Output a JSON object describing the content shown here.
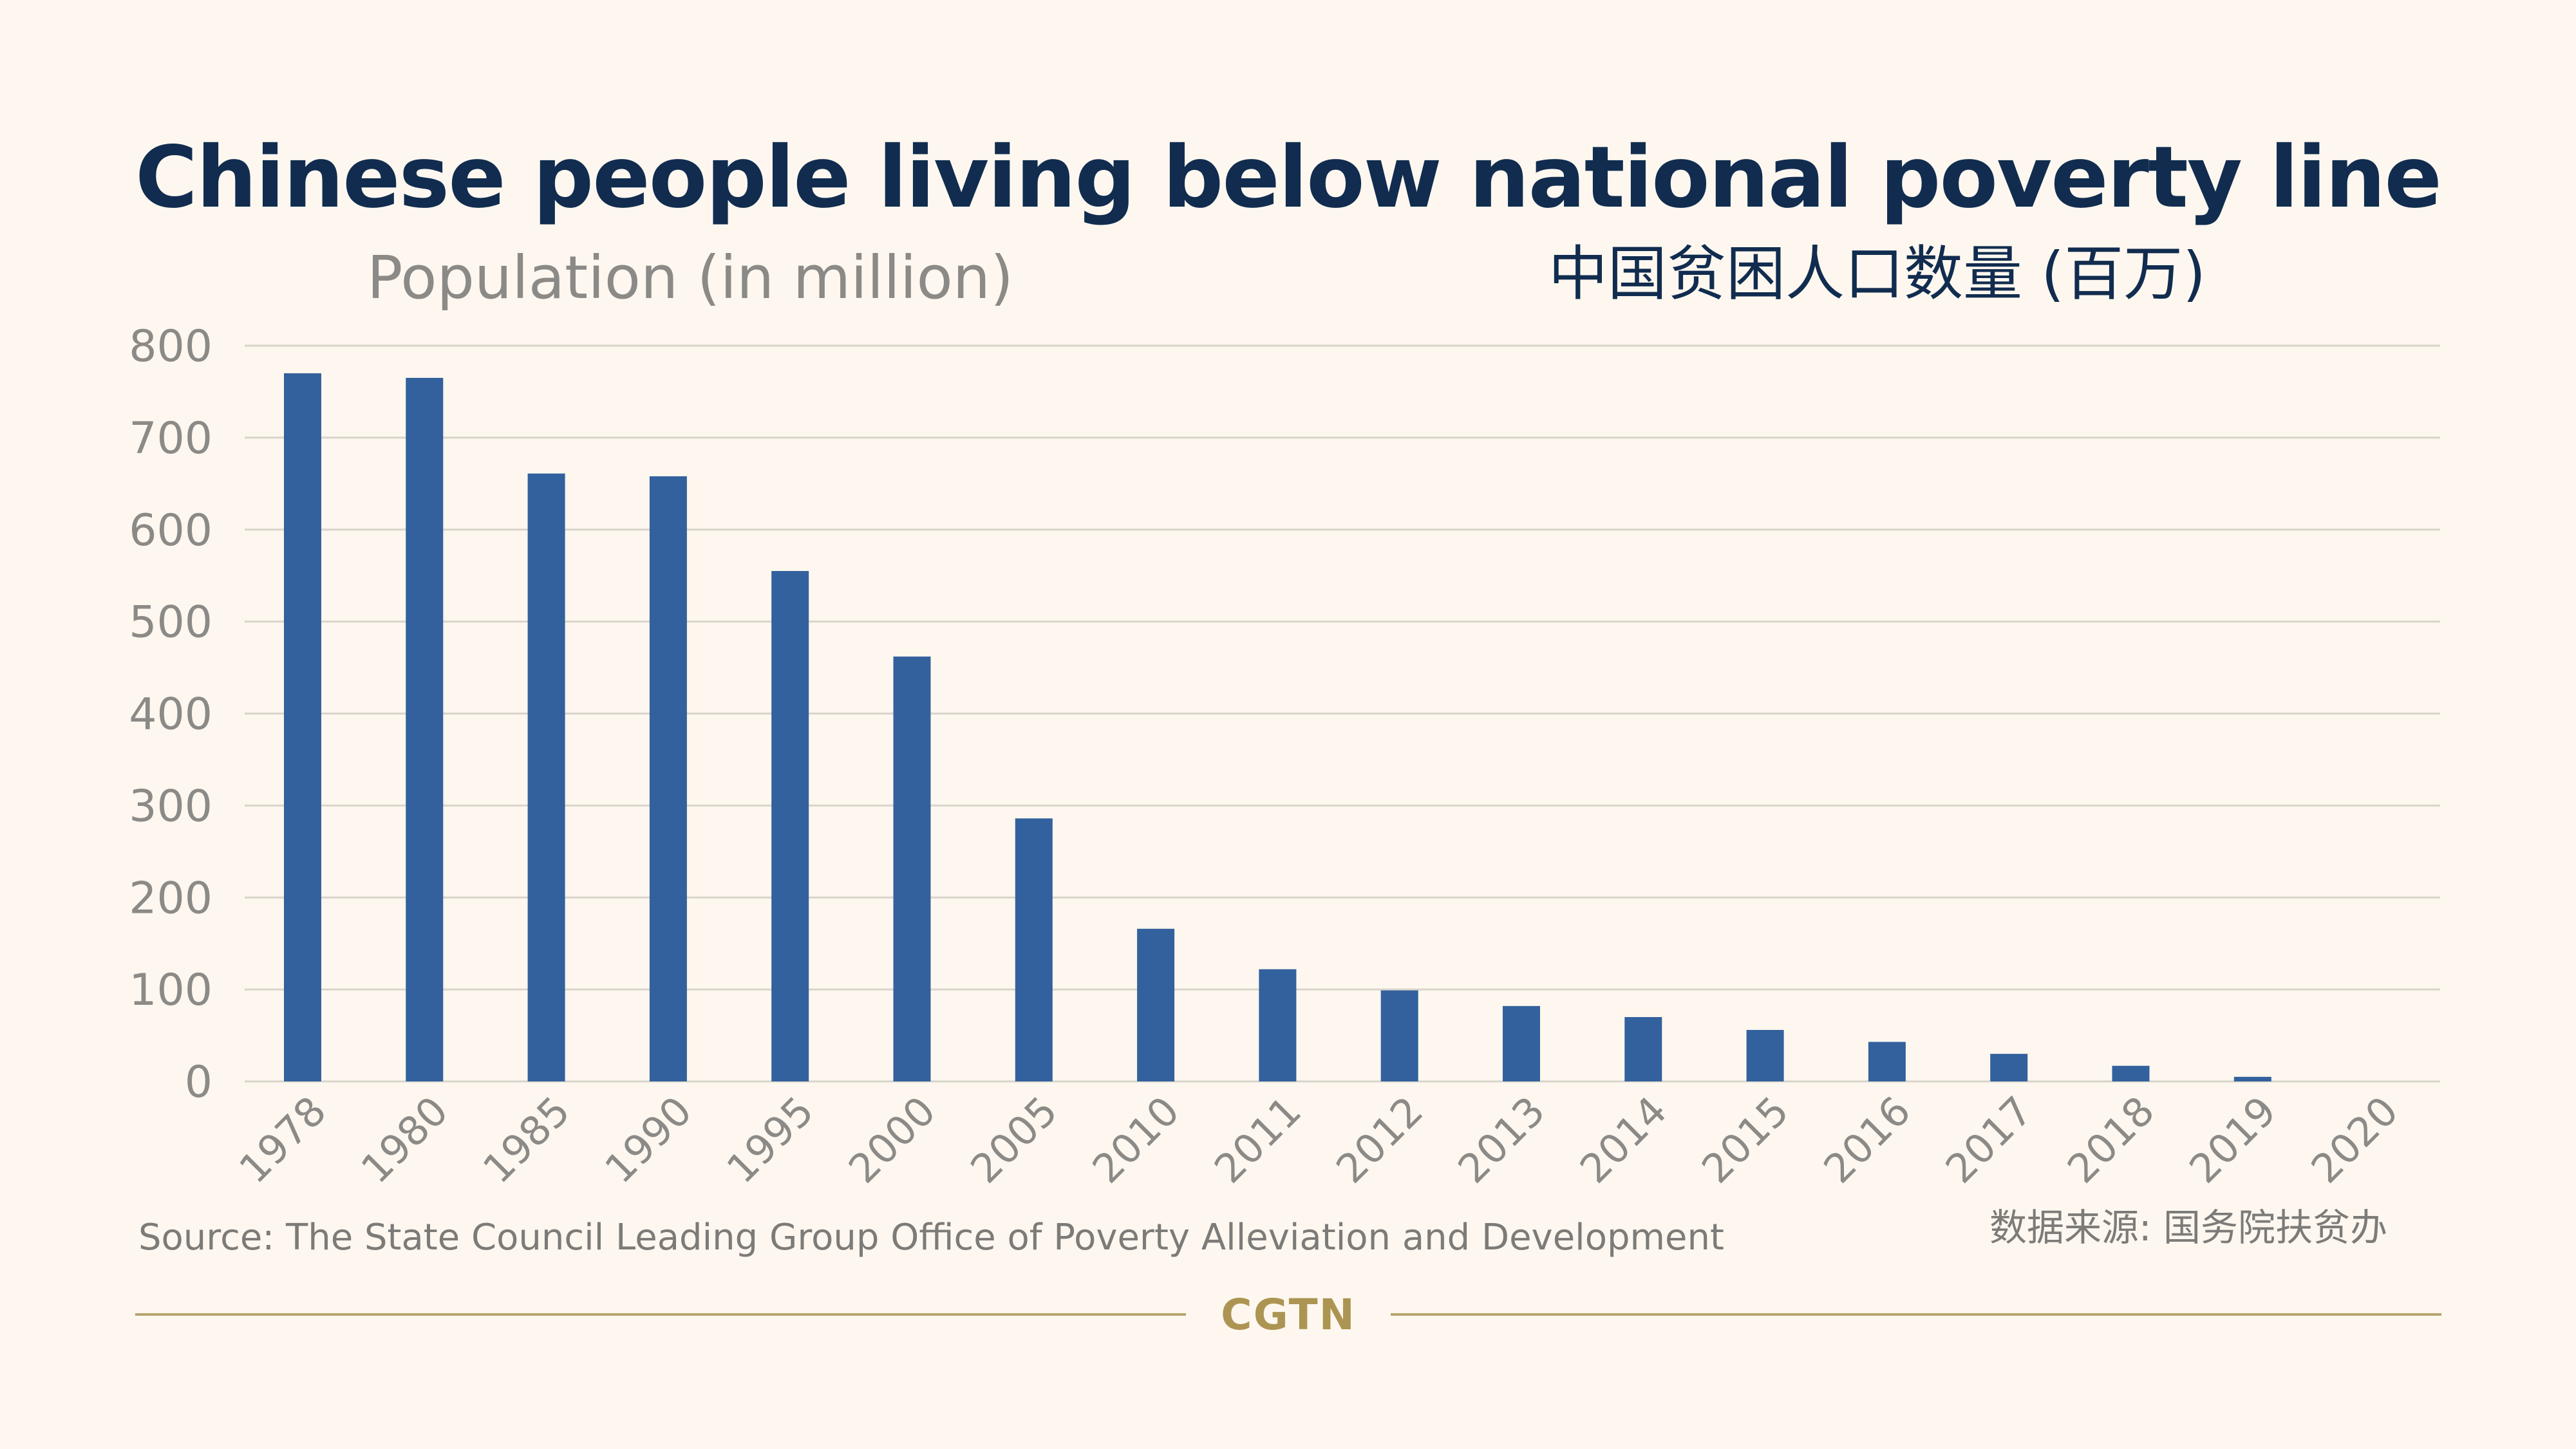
{
  "header": {
    "title": "Chinese people living below national poverty line",
    "subtitle_en": "Population (in million)",
    "subtitle_zh": "中国贫困人口数量 (百万)"
  },
  "footer": {
    "source_en": "Source: The State Council Leading Group Office of Poverty Alleviation and Development",
    "source_zh": "数据来源: 国务院扶贫办",
    "logo": "CGTN"
  },
  "colors": {
    "background": "#fdf7ef",
    "bar": "#33619d",
    "title": "#112c4f",
    "axis_text": "#8c8a87",
    "gridline": "#d9d5cb",
    "accent_gold": "#b7a46d"
  },
  "chart_data": {
    "type": "bar",
    "title": "Chinese people living below national poverty line",
    "ylabel": "Population (in million)",
    "xlabel": "",
    "ylim": [
      0,
      800
    ],
    "yticks": [
      0,
      100,
      200,
      300,
      400,
      500,
      600,
      700,
      800
    ],
    "grid": true,
    "categories": [
      "1978",
      "1980",
      "1985",
      "1990",
      "1995",
      "2000",
      "2005",
      "2010",
      "2011",
      "2012",
      "2013",
      "2014",
      "2015",
      "2016",
      "2017",
      "2018",
      "2019",
      "2020"
    ],
    "values": [
      770,
      765,
      661,
      658,
      555,
      462,
      286,
      166,
      122,
      99,
      82,
      70,
      56,
      43,
      30,
      17,
      5,
      0
    ]
  }
}
